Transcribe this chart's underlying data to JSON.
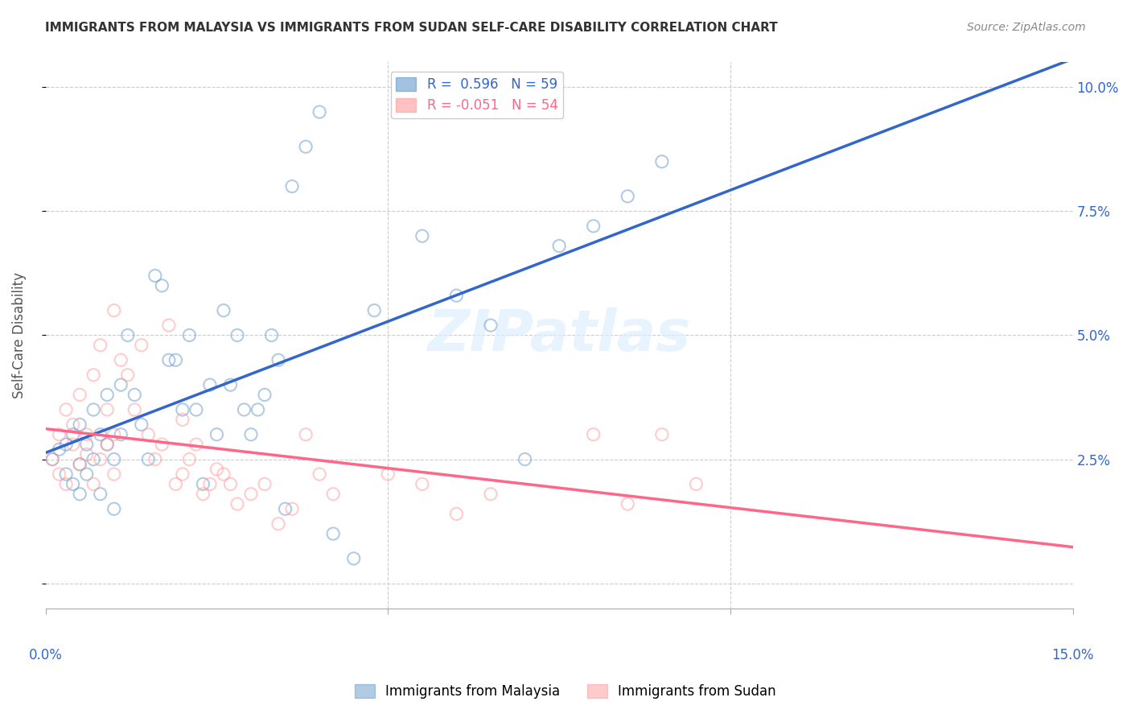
{
  "title": "IMMIGRANTS FROM MALAYSIA VS IMMIGRANTS FROM SUDAN SELF-CARE DISABILITY CORRELATION CHART",
  "source": "Source: ZipAtlas.com",
  "ylabel": "Self-Care Disability",
  "yticks": [
    0.0,
    0.025,
    0.05,
    0.075,
    0.1
  ],
  "ytick_labels": [
    "",
    "2.5%",
    "5.0%",
    "7.5%",
    "10.0%"
  ],
  "xmin": 0.0,
  "xmax": 0.15,
  "ymin": -0.005,
  "ymax": 0.105,
  "legend_r1": "R =  0.596   N = 59",
  "legend_r2": "R = -0.051   N = 54",
  "legend_label1": "Immigrants from Malaysia",
  "legend_label2": "Immigrants from Sudan",
  "color_malaysia": "#6699CC",
  "color_sudan": "#FF9999",
  "trendline_malaysia_color": "#3366CC",
  "trendline_sudan_color": "#FF6688",
  "watermark": "ZIPatlas",
  "malaysia_x": [
    0.001,
    0.002,
    0.003,
    0.003,
    0.004,
    0.004,
    0.005,
    0.005,
    0.005,
    0.006,
    0.006,
    0.007,
    0.007,
    0.008,
    0.008,
    0.009,
    0.009,
    0.01,
    0.01,
    0.011,
    0.011,
    0.012,
    0.013,
    0.014,
    0.015,
    0.016,
    0.017,
    0.018,
    0.019,
    0.02,
    0.021,
    0.022,
    0.023,
    0.024,
    0.025,
    0.026,
    0.027,
    0.028,
    0.029,
    0.03,
    0.031,
    0.032,
    0.033,
    0.034,
    0.035,
    0.036,
    0.038,
    0.04,
    0.042,
    0.045,
    0.048,
    0.055,
    0.06,
    0.065,
    0.07,
    0.075,
    0.08,
    0.085,
    0.09
  ],
  "malaysia_y": [
    0.025,
    0.027,
    0.022,
    0.028,
    0.03,
    0.02,
    0.032,
    0.024,
    0.018,
    0.028,
    0.022,
    0.035,
    0.025,
    0.03,
    0.018,
    0.038,
    0.028,
    0.025,
    0.015,
    0.04,
    0.03,
    0.05,
    0.038,
    0.032,
    0.025,
    0.062,
    0.06,
    0.045,
    0.045,
    0.035,
    0.05,
    0.035,
    0.02,
    0.04,
    0.03,
    0.055,
    0.04,
    0.05,
    0.035,
    0.03,
    0.035,
    0.038,
    0.05,
    0.045,
    0.015,
    0.08,
    0.088,
    0.095,
    0.01,
    0.005,
    0.055,
    0.07,
    0.058,
    0.052,
    0.025,
    0.068,
    0.072,
    0.078,
    0.085
  ],
  "sudan_x": [
    0.001,
    0.002,
    0.002,
    0.003,
    0.003,
    0.004,
    0.004,
    0.005,
    0.005,
    0.006,
    0.006,
    0.007,
    0.007,
    0.008,
    0.008,
    0.009,
    0.009,
    0.01,
    0.01,
    0.011,
    0.012,
    0.013,
    0.014,
    0.015,
    0.016,
    0.017,
    0.018,
    0.019,
    0.02,
    0.021,
    0.022,
    0.023,
    0.024,
    0.025,
    0.026,
    0.027,
    0.028,
    0.03,
    0.032,
    0.034,
    0.036,
    0.038,
    0.04,
    0.042,
    0.05,
    0.055,
    0.06,
    0.065,
    0.08,
    0.085,
    0.09,
    0.095,
    0.01,
    0.02
  ],
  "sudan_y": [
    0.025,
    0.03,
    0.022,
    0.035,
    0.02,
    0.028,
    0.032,
    0.024,
    0.038,
    0.026,
    0.03,
    0.042,
    0.02,
    0.048,
    0.025,
    0.035,
    0.028,
    0.03,
    0.022,
    0.045,
    0.042,
    0.035,
    0.048,
    0.03,
    0.025,
    0.028,
    0.052,
    0.02,
    0.022,
    0.025,
    0.028,
    0.018,
    0.02,
    0.023,
    0.022,
    0.02,
    0.016,
    0.018,
    0.02,
    0.012,
    0.015,
    0.03,
    0.022,
    0.018,
    0.022,
    0.02,
    0.014,
    0.018,
    0.03,
    0.016,
    0.03,
    0.02,
    0.055,
    0.033
  ]
}
